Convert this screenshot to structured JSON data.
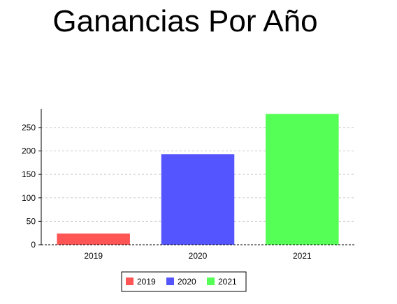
{
  "chart_data": {
    "type": "bar",
    "title": "Ganancias Por Año",
    "categories": [
      "2019",
      "2020",
      "2021"
    ],
    "series": [
      {
        "name": "2019",
        "category": "2019",
        "value": 24,
        "color": "#ff5555"
      },
      {
        "name": "2020",
        "category": "2020",
        "value": 193,
        "color": "#5555ff"
      },
      {
        "name": "2021",
        "category": "2021",
        "value": 279,
        "color": "#55ff55"
      }
    ],
    "xlabel": "",
    "ylabel": "",
    "ylim": [
      0,
      290
    ],
    "yticks": [
      0,
      50,
      100,
      150,
      200,
      250
    ],
    "grid": true,
    "legend_position": "bottom"
  }
}
